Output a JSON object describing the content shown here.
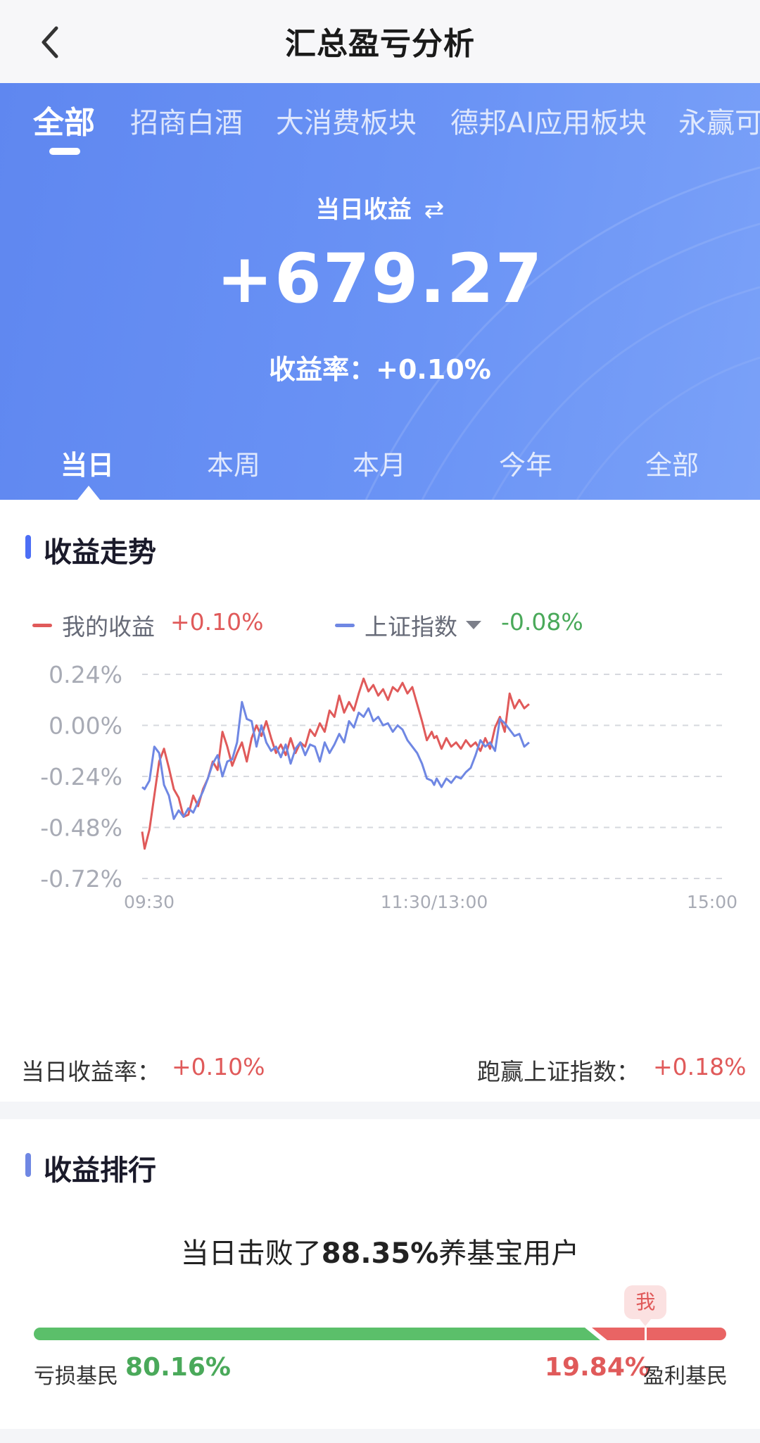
{
  "nav": {
    "title": "汇总盈亏分析",
    "back_icon": "chevron-left-icon"
  },
  "fund_tabs": [
    {
      "label": "全部",
      "active": true
    },
    {
      "label": "招商白酒",
      "active": false
    },
    {
      "label": "大消费板块",
      "active": false
    },
    {
      "label": "德邦AI应用板块",
      "active": false
    },
    {
      "label": "永赢可",
      "active": false
    }
  ],
  "summary": {
    "label": "当日收益",
    "swap_icon": "swap-icon",
    "swap_glyph": "⇄",
    "value": "+679.27",
    "rate_text": "收益率：+0.10%"
  },
  "period_tabs": [
    {
      "label": "当日",
      "active": true
    },
    {
      "label": "本周",
      "active": false
    },
    {
      "label": "本月",
      "active": false
    },
    {
      "label": "今年",
      "active": false
    },
    {
      "label": "全部",
      "active": false
    }
  ],
  "trend": {
    "title": "收益走势",
    "legend": {
      "mine_label": "我的收益",
      "mine_value": "+0.10%",
      "index_label": "上证指数",
      "index_value": "-0.08%"
    },
    "stats": {
      "day_rate_label": "当日收益率：",
      "day_rate_value": "+0.10%",
      "beat_label": "跑赢上证指数：",
      "beat_value": "+0.18%"
    }
  },
  "colors": {
    "mine": "#e05a5a",
    "index": "#6f87e3",
    "gain": "#e05a5a",
    "loss": "#4aa95a"
  },
  "chart_data": {
    "type": "line",
    "x_ticks": [
      "09:30",
      "11:30/13:00",
      "15:00"
    ],
    "y_ticks": [
      "0.24%",
      "0.00%",
      "-0.24%",
      "-0.48%",
      "-0.72%"
    ],
    "ylim": [
      -0.72,
      0.24
    ],
    "x_range_minutes": [
      0,
      240
    ],
    "grid": true,
    "legend_placement": "top-left",
    "series": [
      {
        "name": "我的收益",
        "color": "#e05a5a",
        "points": [
          [
            0,
            -0.5
          ],
          [
            1,
            -0.58
          ],
          [
            3,
            -0.49
          ],
          [
            5,
            -0.33
          ],
          [
            7,
            -0.17
          ],
          [
            9,
            -0.11
          ],
          [
            11,
            -0.2
          ],
          [
            13,
            -0.3
          ],
          [
            15,
            -0.34
          ],
          [
            17,
            -0.43
          ],
          [
            19,
            -0.42
          ],
          [
            21,
            -0.33
          ],
          [
            23,
            -0.38
          ],
          [
            25,
            -0.3
          ],
          [
            27,
            -0.25
          ],
          [
            29,
            -0.17
          ],
          [
            31,
            -0.21
          ],
          [
            33,
            -0.03
          ],
          [
            35,
            -0.1
          ],
          [
            37,
            -0.19
          ],
          [
            39,
            -0.13
          ],
          [
            41,
            -0.08
          ],
          [
            43,
            -0.17
          ],
          [
            45,
            -0.06
          ],
          [
            47,
            0.0
          ],
          [
            49,
            -0.05
          ],
          [
            51,
            0.02
          ],
          [
            53,
            -0.06
          ],
          [
            55,
            -0.13
          ],
          [
            57,
            -0.09
          ],
          [
            59,
            -0.14
          ],
          [
            61,
            -0.06
          ],
          [
            63,
            -0.13
          ],
          [
            65,
            -0.08
          ],
          [
            67,
            -0.1
          ],
          [
            69,
            -0.02
          ],
          [
            71,
            -0.05
          ],
          [
            73,
            0.01
          ],
          [
            75,
            -0.03
          ],
          [
            77,
            0.07
          ],
          [
            79,
            0.04
          ],
          [
            81,
            0.14
          ],
          [
            83,
            0.06
          ],
          [
            85,
            0.11
          ],
          [
            87,
            0.07
          ],
          [
            89,
            0.15
          ],
          [
            91,
            0.22
          ],
          [
            93,
            0.16
          ],
          [
            95,
            0.19
          ],
          [
            97,
            0.14
          ],
          [
            99,
            0.17
          ],
          [
            101,
            0.12
          ],
          [
            103,
            0.18
          ],
          [
            105,
            0.16
          ],
          [
            107,
            0.2
          ],
          [
            109,
            0.15
          ],
          [
            111,
            0.18
          ],
          [
            113,
            0.1
          ],
          [
            115,
            0.02
          ],
          [
            117,
            -0.07
          ],
          [
            119,
            -0.03
          ],
          [
            120,
            -0.06
          ],
          [
            121,
            -0.05
          ],
          [
            123,
            -0.11
          ],
          [
            125,
            -0.06
          ],
          [
            127,
            -0.1
          ],
          [
            129,
            -0.08
          ],
          [
            131,
            -0.11
          ],
          [
            133,
            -0.07
          ],
          [
            135,
            -0.1
          ],
          [
            137,
            -0.08
          ],
          [
            139,
            -0.12
          ],
          [
            141,
            -0.06
          ],
          [
            143,
            -0.11
          ],
          [
            145,
            -0.01
          ],
          [
            147,
            0.04
          ],
          [
            149,
            -0.03
          ],
          [
            151,
            0.15
          ],
          [
            153,
            0.08
          ],
          [
            155,
            0.12
          ],
          [
            157,
            0.08
          ],
          [
            159,
            0.1
          ]
        ]
      },
      {
        "name": "上证指数",
        "color": "#6f87e3",
        "points": [
          [
            0,
            -0.29
          ],
          [
            1,
            -0.3
          ],
          [
            3,
            -0.26
          ],
          [
            5,
            -0.1
          ],
          [
            7,
            -0.13
          ],
          [
            9,
            -0.28
          ],
          [
            11,
            -0.33
          ],
          [
            13,
            -0.44
          ],
          [
            15,
            -0.4
          ],
          [
            17,
            -0.43
          ],
          [
            19,
            -0.39
          ],
          [
            21,
            -0.41
          ],
          [
            23,
            -0.36
          ],
          [
            25,
            -0.31
          ],
          [
            27,
            -0.25
          ],
          [
            29,
            -0.18
          ],
          [
            31,
            -0.14
          ],
          [
            33,
            -0.24
          ],
          [
            35,
            -0.17
          ],
          [
            37,
            -0.16
          ],
          [
            39,
            -0.08
          ],
          [
            41,
            0.11
          ],
          [
            43,
            0.03
          ],
          [
            45,
            0.02
          ],
          [
            47,
            -0.1
          ],
          [
            49,
            0.0
          ],
          [
            51,
            -0.08
          ],
          [
            53,
            -0.12
          ],
          [
            55,
            -0.1
          ],
          [
            57,
            -0.15
          ],
          [
            59,
            -0.09
          ],
          [
            61,
            -0.18
          ],
          [
            63,
            -0.11
          ],
          [
            65,
            -0.08
          ],
          [
            67,
            -0.14
          ],
          [
            69,
            -0.09
          ],
          [
            71,
            -0.1
          ],
          [
            73,
            -0.17
          ],
          [
            75,
            -0.08
          ],
          [
            77,
            -0.13
          ],
          [
            79,
            -0.09
          ],
          [
            81,
            -0.04
          ],
          [
            83,
            -0.08
          ],
          [
            85,
            0.02
          ],
          [
            87,
            -0.01
          ],
          [
            89,
            0.06
          ],
          [
            91,
            0.04
          ],
          [
            93,
            0.08
          ],
          [
            95,
            0.02
          ],
          [
            97,
            0.04
          ],
          [
            99,
            0.0
          ],
          [
            101,
            0.01
          ],
          [
            103,
            -0.03
          ],
          [
            105,
            0.0
          ],
          [
            107,
            -0.02
          ],
          [
            109,
            -0.07
          ],
          [
            111,
            -0.1
          ],
          [
            113,
            -0.13
          ],
          [
            115,
            -0.18
          ],
          [
            117,
            -0.25
          ],
          [
            119,
            -0.26
          ],
          [
            120,
            -0.28
          ],
          [
            121,
            -0.25
          ],
          [
            123,
            -0.29
          ],
          [
            125,
            -0.25
          ],
          [
            127,
            -0.27
          ],
          [
            129,
            -0.24
          ],
          [
            131,
            -0.25
          ],
          [
            133,
            -0.22
          ],
          [
            135,
            -0.2
          ],
          [
            137,
            -0.14
          ],
          [
            139,
            -0.07
          ],
          [
            141,
            -0.1
          ],
          [
            143,
            -0.08
          ],
          [
            145,
            -0.12
          ],
          [
            147,
            0.03
          ],
          [
            149,
            0.01
          ],
          [
            151,
            -0.02
          ],
          [
            153,
            -0.05
          ],
          [
            155,
            -0.04
          ],
          [
            157,
            -0.1
          ],
          [
            159,
            -0.08
          ]
        ]
      }
    ]
  },
  "ranking": {
    "title": "收益排行",
    "text_prefix": "当日击败了",
    "text_pct": "88.35%",
    "text_suffix": "养基宝用户",
    "me_label": "我",
    "loss_label": "亏损基民",
    "loss_pct": "80.16%",
    "profit_pct": "19.84%",
    "profit_label": "盈利基民",
    "loss_fraction": 0.8016,
    "me_fraction": 0.8835
  }
}
